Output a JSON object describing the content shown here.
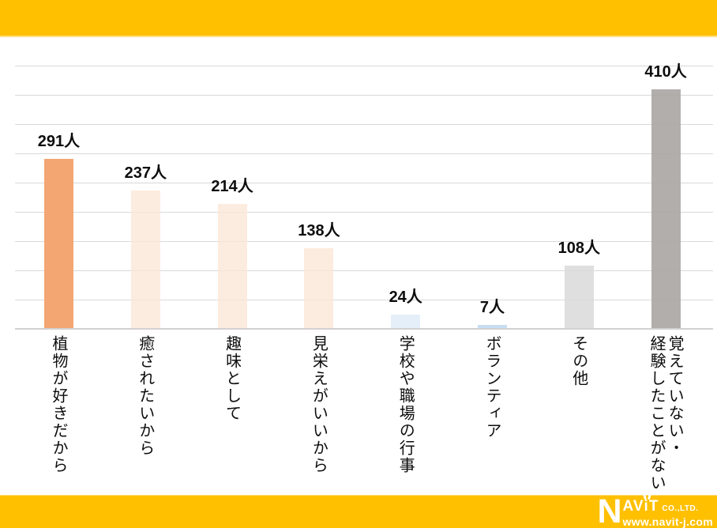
{
  "banner": {
    "color": "#FFC000"
  },
  "chart_data": {
    "type": "bar",
    "title": "",
    "xlabel": "",
    "ylabel": "",
    "unit": "人",
    "categories": [
      "植物が好きだから",
      "癒されたいから",
      "趣味として",
      "見栄えがいいから",
      "学校や職場の行事",
      "ボランティア",
      "その他",
      "覚えていない・\n経験したことがない"
    ],
    "values": [
      291,
      237,
      214,
      138,
      24,
      7,
      108,
      410
    ],
    "data_labels": [
      "291人",
      "237人",
      "214人",
      "138人",
      "24人",
      "7人",
      "108人",
      "410人"
    ],
    "bar_colors": [
      "#F3A671",
      "#FBE5D6",
      "#FBE5D6",
      "#FBE5D6",
      "#DEEBF7",
      "#BDD7EE",
      "#D9D9D9",
      "#ABA7A5"
    ],
    "bar_alpha": [
      1,
      0.78,
      0.78,
      0.78,
      0.8,
      0.85,
      0.85,
      0.92
    ],
    "ylim": [
      0,
      450
    ],
    "gridline_step": 50,
    "grid": true,
    "legend": "none",
    "gridline_color": "#D9D9D9"
  },
  "footer": {
    "logo": {
      "n": "N",
      "name_av": "AV",
      "name_i": "i",
      "name_t": "T",
      "suffix": "CO.,LTD.",
      "url": "www.navit-j.com"
    }
  }
}
